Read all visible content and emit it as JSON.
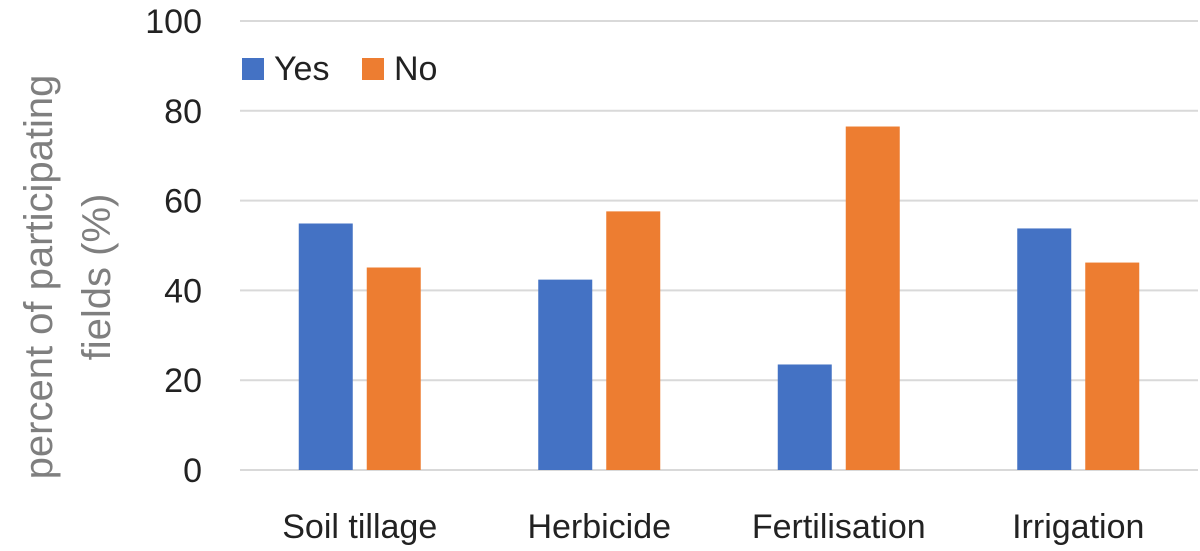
{
  "chart_data": {
    "type": "bar",
    "title": "",
    "xlabel": "",
    "ylabel_lines": [
      "percent of participating",
      "fields (%)"
    ],
    "categories": [
      "Soil tillage",
      "Herbicide",
      "Fertilisation",
      "Irrigation"
    ],
    "series": [
      {
        "name": "Yes",
        "color": "#4472c4",
        "values": [
          54.9,
          42.4,
          23.5,
          53.8
        ]
      },
      {
        "name": "No",
        "color": "#ed7d31",
        "values": [
          45.1,
          57.6,
          76.5,
          46.2
        ]
      }
    ],
    "ylim": [
      0,
      100
    ],
    "yticks": [
      "0",
      "20",
      "40",
      "60",
      "80",
      "100"
    ],
    "grid": true,
    "gridline_color": "#d9d9d9",
    "legend_position": "top-left"
  }
}
